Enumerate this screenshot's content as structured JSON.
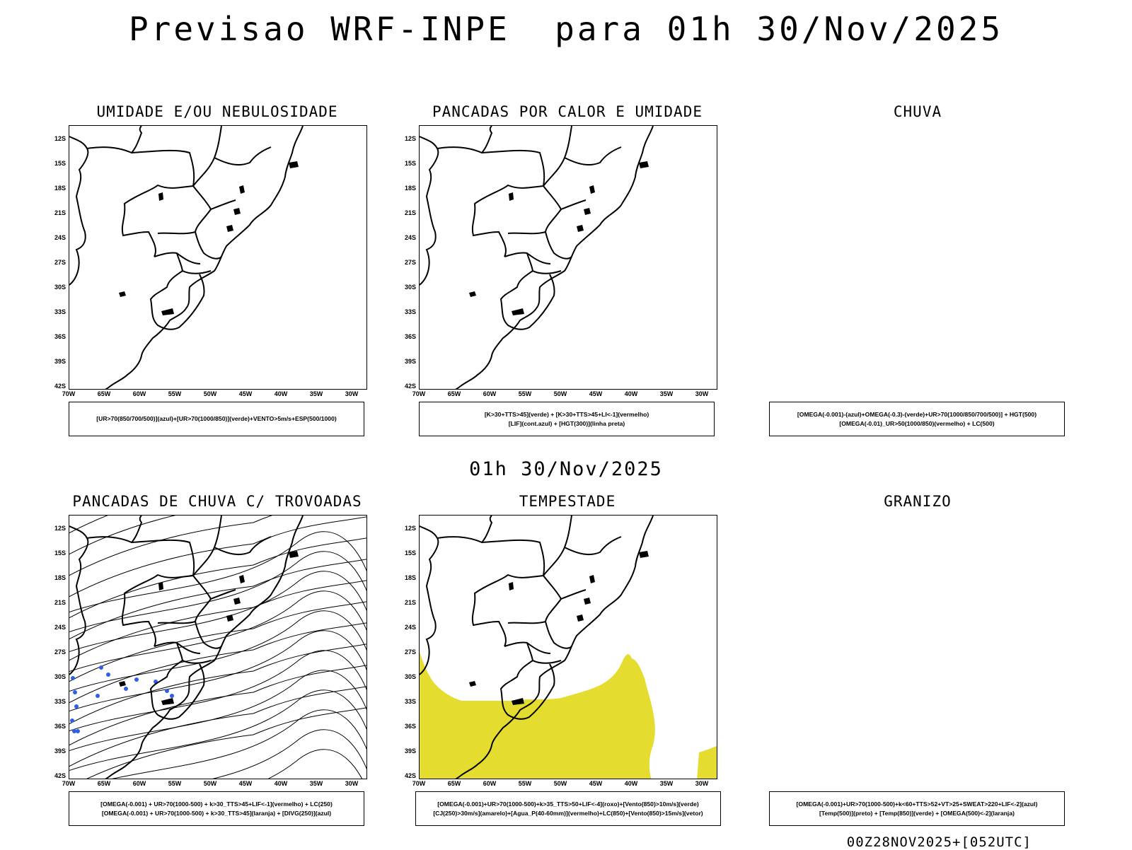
{
  "main_title": "Previsao WRF-INPE  para 01h 30/Nov/2025",
  "mid_title": "01h 30/Nov/2025",
  "footer": "00Z28NOV2025+[052UTC]",
  "lat_ticks": [
    "12S",
    "15S",
    "18S",
    "21S",
    "24S",
    "27S",
    "30S",
    "33S",
    "36S",
    "39S",
    "42S"
  ],
  "lon_ticks": [
    "70W",
    "65W",
    "60W",
    "55W",
    "50W",
    "45W",
    "40W",
    "35W",
    "30W"
  ],
  "colors": {
    "storm_area": "#e5dc30",
    "convection_cells": "#2f5ee6",
    "borders": "#000000"
  },
  "panels": {
    "humidity": {
      "title": "UMIDADE E/OU NEBULOSIDADE",
      "legend": [
        "[UR>70(850/700/500)](azul)+[UR>70(1000/850)](verde)+VENTO>5m/s+ESP(500/1000)"
      ]
    },
    "heat": {
      "title": "PANCADAS POR CALOR E UMIDADE",
      "legend": [
        "[K>30+TTS>45](verde) + [K>30+TTS>45+LI<-1](vermelho)",
        "[LIF](cont.azul) + [HGT(300)](linha preta)"
      ]
    },
    "rain": {
      "title": "CHUVA",
      "legend": [
        "[OMEGA(-0.001)-(azul)+OMEGA(-0.3)-(verde)+UR>70(1000/850/700/500)] + HGT(500)",
        "[OMEGA(-0.01)_UR>50(1000/850)(vermelho) + LC(500)"
      ]
    },
    "thunder": {
      "title": "PANCADAS DE CHUVA C/ TROVOADAS",
      "legend": [
        "[OMEGA(-0.001) + UR>70(1000-500) + k>30_TTS>45+LIF<-1](vermelho) + LC(250)",
        "[OMEGA(-0.001) + UR>70(1000-500) + k>30_TTS>45](laranja) + [DIVG(250)](azul)"
      ]
    },
    "storm": {
      "title": "TEMPESTADE",
      "legend": [
        "[OMEGA(-0.001)+UR>70(1000-500)+k>35_TTS>50+LIF<-4](roxo)+[Vento(850)>10m/s](verde)",
        "[CJ(250)>30m/s](amarelo)+[Agua_P(40-60mm)](vermelho)+LC(850)+[Vento(850)>15m/s](vetor)"
      ]
    },
    "hail": {
      "title": "GRANIZO",
      "legend": [
        "[OMEGA(-0.001)+UR>70(1000-500)+k<60+TTS>52+VT>25+SWEAT>220+LIF<-2](azul)",
        "[Temp(500)](preto) + [Temp(850)](verde) + [OMEGA(500)<-2](laranja)"
      ]
    }
  }
}
